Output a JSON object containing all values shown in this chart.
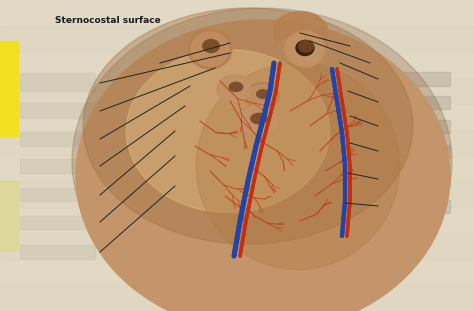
{
  "title": "Sternocostal surface",
  "title_fontsize": 6.5,
  "title_color": "#1a1a1a",
  "page_bg": "#e2d9c5",
  "page_bg2": "#cec5af",
  "heart_main": "#c4956a",
  "heart_dark": "#a07040",
  "heart_light": "#d4aa7a",
  "heart_highlight": "#dbb880",
  "vessel_red": "#c03010",
  "vessel_blue": "#2244aa",
  "vessel_red2": "#993300",
  "aorta_color": "#b8905a",
  "vessel_fill": "#c4956a",
  "vessel_inner": "#6a4020",
  "ann_line_color": "#222222",
  "yellow1": "#f0e020",
  "yellow2": "#ddd890",
  "label_blur": "#cdc6b0",
  "right_label_blur": "#b0a898",
  "shadow_color": "#7a5530"
}
